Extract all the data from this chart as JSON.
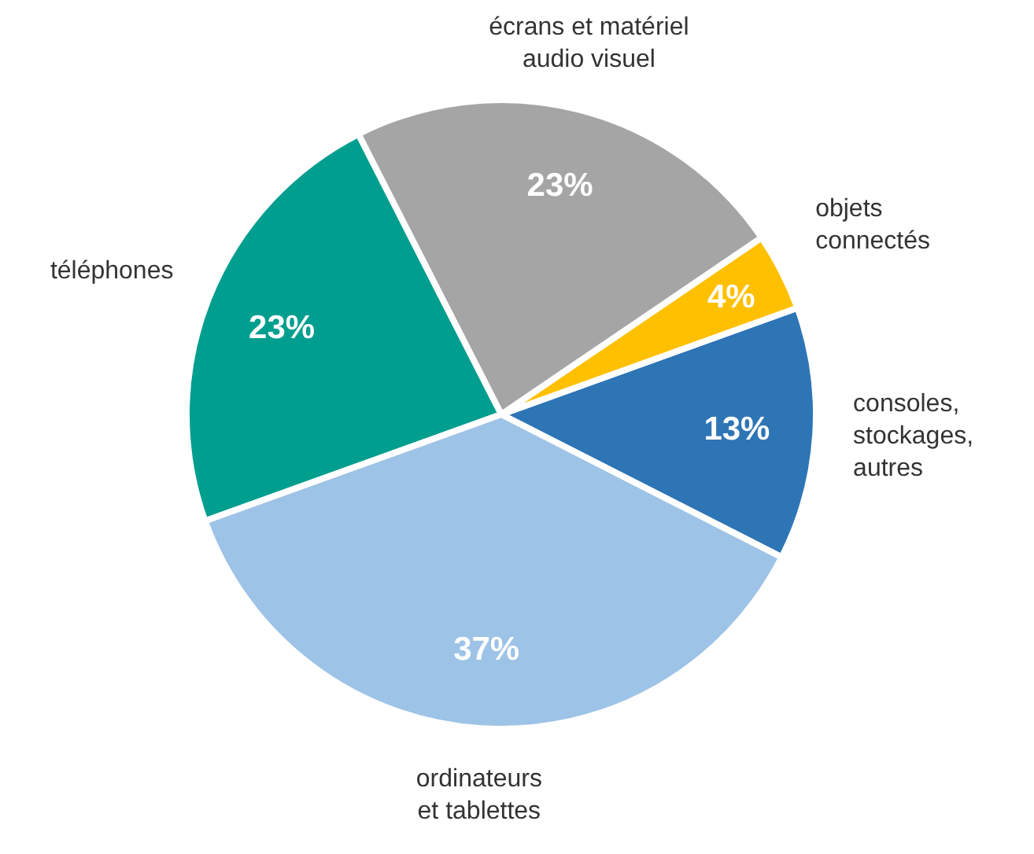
{
  "chart_data": {
    "type": "pie",
    "categories": [
      "consoles,\nstockages,\nautres",
      "objets\nconnectés",
      "écrans et matériel\naudio visuel",
      "téléphones",
      "ordinateurs\net tablettes"
    ],
    "values": [
      13,
      4,
      23,
      23,
      37
    ],
    "colors": [
      "#2e75b6",
      "#ffc000",
      "#a5a5a5",
      "#009e8e",
      "#9dc3e6"
    ],
    "value_labels": [
      "13%",
      "4%",
      "23%",
      "23%",
      "37%"
    ]
  }
}
